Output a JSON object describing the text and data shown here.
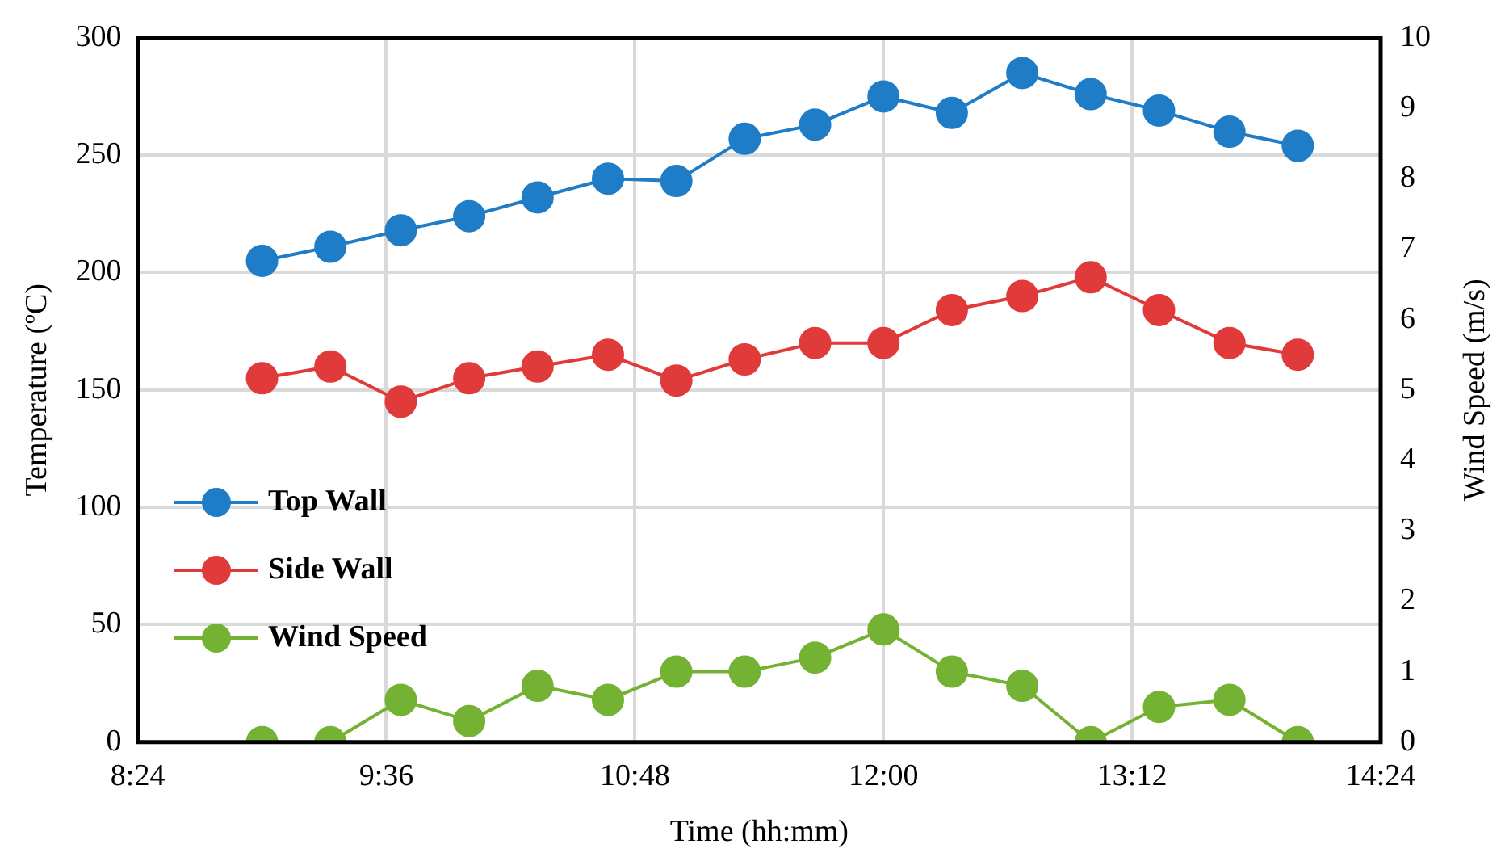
{
  "chart_data": {
    "type": "line",
    "xlabel": "Time (hh:mm)",
    "ylabel": "Temperature (ºC)",
    "y2label": "Wind Speed (m/s)",
    "x": [
      9,
      9.33,
      9.67,
      10,
      10.33,
      10.67,
      11,
      11.33,
      11.67,
      12,
      12.33,
      12.67,
      13,
      13.33,
      13.67,
      14
    ],
    "xlim": [
      8.4,
      14.4
    ],
    "xticks": [
      {
        "value": 8.4,
        "label": "8:24"
      },
      {
        "value": 9.6,
        "label": "9:36"
      },
      {
        "value": 10.8,
        "label": "10:48"
      },
      {
        "value": 12,
        "label": "12:00"
      },
      {
        "value": 13.2,
        "label": "13:12"
      },
      {
        "value": 14.4,
        "label": "14:24"
      }
    ],
    "ylim": [
      0,
      300
    ],
    "yticks": [
      0,
      50,
      100,
      150,
      200,
      250,
      300
    ],
    "y2lim": [
      0,
      10
    ],
    "y2ticks": [
      0,
      1,
      2,
      3,
      4,
      5,
      6,
      7,
      8,
      9,
      10
    ],
    "grid": true,
    "legend": "left",
    "marker": "circle",
    "line_style": "solid",
    "series": [
      {
        "name": "Top Wall",
        "color": "#1f7cc7",
        "values": [
          205,
          211,
          218,
          224,
          232,
          240,
          239,
          257,
          263,
          275,
          268,
          285,
          276,
          269,
          260,
          254
        ]
      },
      {
        "name": "Side Wall",
        "color": "#e03a3a",
        "values": [
          155,
          160,
          145,
          155,
          160,
          165,
          154,
          163,
          170,
          170,
          184,
          190,
          198,
          184,
          170,
          165
        ]
      },
      {
        "name": "Wind Speed",
        "color": "#74b234",
        "axis": "y2",
        "values": [
          0,
          0,
          0.6,
          0.3,
          0.8,
          0.6,
          1.0,
          1.0,
          1.2,
          1.6,
          1.0,
          0.8,
          0,
          0.5,
          0.6,
          0
        ]
      }
    ]
  }
}
